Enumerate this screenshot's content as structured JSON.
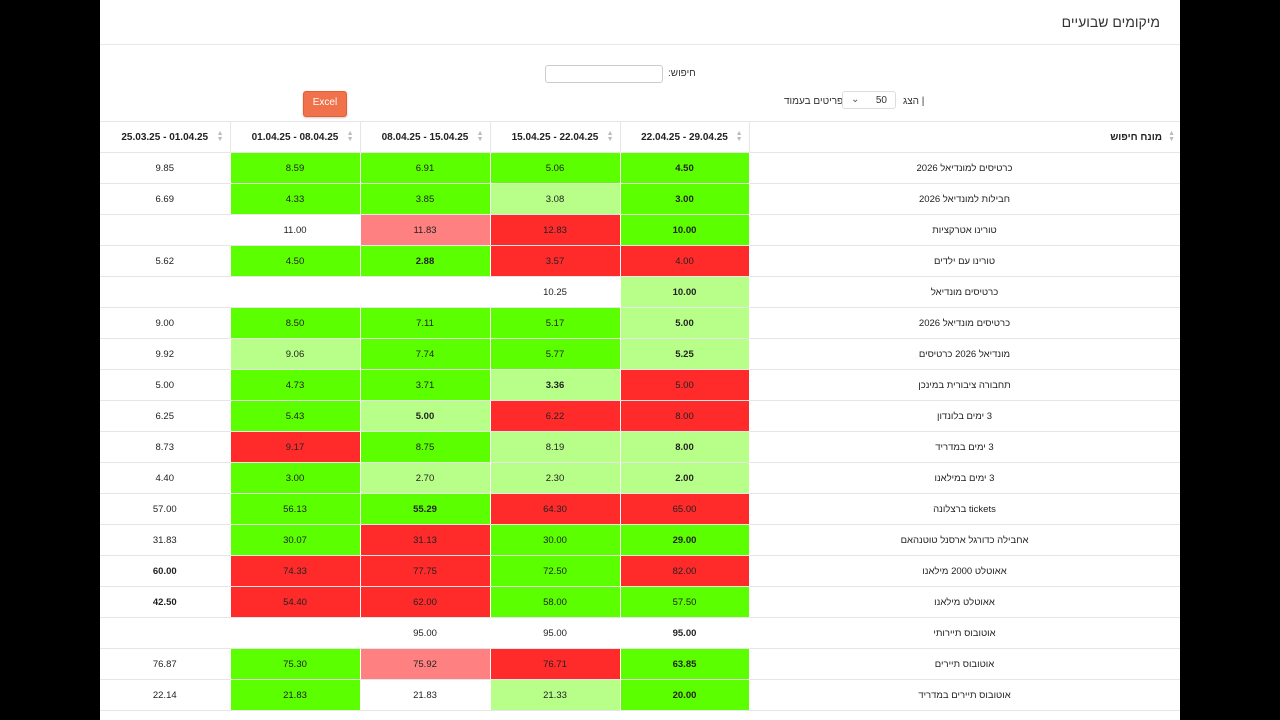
{
  "page": {
    "title": "מיקומים שבועיים"
  },
  "search": {
    "label": "חיפוש:",
    "value": ""
  },
  "excel": {
    "label": "Excel"
  },
  "pager": {
    "prefix": "| הצג",
    "value": "50",
    "suffix": "פריטים בעמוד"
  },
  "columns": {
    "query": "מונח חיפוש",
    "dates": [
      "22.04.25 - 29.04.25",
      "15.04.25 - 22.04.25",
      "08.04.25 - 15.04.25",
      "01.04.25 - 08.04.25",
      "25.03.25 - 01.04.25"
    ]
  },
  "colors": {
    "green": "#5cff00",
    "light_green": "#b7ff88",
    "red": "#ff2b2b",
    "light_red": "#ff8080"
  },
  "rows": [
    {
      "query": "כרטיסים למונדיאל 2026",
      "cells": [
        {
          "v": "4.50",
          "c": "g",
          "b": true
        },
        {
          "v": "5.06",
          "c": "g"
        },
        {
          "v": "6.91",
          "c": "g"
        },
        {
          "v": "8.59",
          "c": "g"
        },
        {
          "v": "9.85",
          "c": ""
        }
      ]
    },
    {
      "query": "חבילות למונדיאל 2026",
      "cells": [
        {
          "v": "3.00",
          "c": "g",
          "b": true
        },
        {
          "v": "3.08",
          "c": "lg"
        },
        {
          "v": "3.85",
          "c": "g"
        },
        {
          "v": "4.33",
          "c": "g"
        },
        {
          "v": "6.69",
          "c": ""
        }
      ]
    },
    {
      "query": "טורינו אטרקציות",
      "cells": [
        {
          "v": "10.00",
          "c": "g",
          "b": true
        },
        {
          "v": "12.83",
          "c": "r"
        },
        {
          "v": "11.83",
          "c": "lr"
        },
        {
          "v": "11.00",
          "c": ""
        },
        {
          "v": "",
          "c": ""
        }
      ]
    },
    {
      "query": "טורינו עם ילדים",
      "cells": [
        {
          "v": "4.00",
          "c": "r"
        },
        {
          "v": "3.57",
          "c": "r"
        },
        {
          "v": "2.88",
          "c": "g",
          "b": true
        },
        {
          "v": "4.50",
          "c": "g"
        },
        {
          "v": "5.62",
          "c": ""
        }
      ]
    },
    {
      "query": "כרטיסים מונדיאל",
      "cells": [
        {
          "v": "10.00",
          "c": "lg",
          "b": true
        },
        {
          "v": "10.25",
          "c": ""
        },
        {
          "v": "",
          "c": ""
        },
        {
          "v": "",
          "c": ""
        },
        {
          "v": "",
          "c": ""
        }
      ]
    },
    {
      "query": "כרטיסים מונדיאל 2026",
      "cells": [
        {
          "v": "5.00",
          "c": "lg",
          "b": true
        },
        {
          "v": "5.17",
          "c": "g"
        },
        {
          "v": "7.11",
          "c": "g"
        },
        {
          "v": "8.50",
          "c": "g"
        },
        {
          "v": "9.00",
          "c": ""
        }
      ]
    },
    {
      "query": "מונדיאל 2026 כרטיסים",
      "cells": [
        {
          "v": "5.25",
          "c": "lg",
          "b": true
        },
        {
          "v": "5.77",
          "c": "g"
        },
        {
          "v": "7.74",
          "c": "g"
        },
        {
          "v": "9.06",
          "c": "lg"
        },
        {
          "v": "9.92",
          "c": ""
        }
      ]
    },
    {
      "query": "תחבורה ציבורית במינכן",
      "cells": [
        {
          "v": "5.00",
          "c": "r"
        },
        {
          "v": "3.36",
          "c": "lg",
          "b": true
        },
        {
          "v": "3.71",
          "c": "g"
        },
        {
          "v": "4.73",
          "c": "g"
        },
        {
          "v": "5.00",
          "c": ""
        }
      ]
    },
    {
      "query": "3 ימים בלונדון",
      "cells": [
        {
          "v": "8.00",
          "c": "r"
        },
        {
          "v": "6.22",
          "c": "r"
        },
        {
          "v": "5.00",
          "c": "lg",
          "b": true
        },
        {
          "v": "5.43",
          "c": "g"
        },
        {
          "v": "6.25",
          "c": ""
        }
      ]
    },
    {
      "query": "3 ימים במדריד",
      "cells": [
        {
          "v": "8.00",
          "c": "lg",
          "b": true
        },
        {
          "v": "8.19",
          "c": "lg"
        },
        {
          "v": "8.75",
          "c": "g"
        },
        {
          "v": "9.17",
          "c": "r"
        },
        {
          "v": "8.73",
          "c": ""
        }
      ]
    },
    {
      "query": "3 ימים במילאנו",
      "cells": [
        {
          "v": "2.00",
          "c": "lg",
          "b": true
        },
        {
          "v": "2.30",
          "c": "lg"
        },
        {
          "v": "2.70",
          "c": "lg"
        },
        {
          "v": "3.00",
          "c": "g"
        },
        {
          "v": "4.40",
          "c": ""
        }
      ]
    },
    {
      "query": "tickets ברצלונה",
      "cells": [
        {
          "v": "65.00",
          "c": "r"
        },
        {
          "v": "64.30",
          "c": "r"
        },
        {
          "v": "55.29",
          "c": "g",
          "b": true
        },
        {
          "v": "56.13",
          "c": "g"
        },
        {
          "v": "57.00",
          "c": ""
        }
      ]
    },
    {
      "query": "אחבילה כדורגל ארסנל טוטנהאם",
      "cells": [
        {
          "v": "29.00",
          "c": "g",
          "b": true
        },
        {
          "v": "30.00",
          "c": "g"
        },
        {
          "v": "31.13",
          "c": "r"
        },
        {
          "v": "30.07",
          "c": "g"
        },
        {
          "v": "31.83",
          "c": ""
        }
      ]
    },
    {
      "query": "אאוטלט 2000 מילאנו",
      "cells": [
        {
          "v": "82.00",
          "c": "r"
        },
        {
          "v": "72.50",
          "c": "g"
        },
        {
          "v": "77.75",
          "c": "r"
        },
        {
          "v": "74.33",
          "c": "r"
        },
        {
          "v": "60.00",
          "c": "",
          "b": true
        }
      ]
    },
    {
      "query": "אאוטלט מילאנו",
      "cells": [
        {
          "v": "57.50",
          "c": "g"
        },
        {
          "v": "58.00",
          "c": "g"
        },
        {
          "v": "62.00",
          "c": "r"
        },
        {
          "v": "54.40",
          "c": "r"
        },
        {
          "v": "42.50",
          "c": "",
          "b": true
        }
      ]
    },
    {
      "query": "אוטובוס תיירותי",
      "cells": [
        {
          "v": "95.00",
          "c": "",
          "b": true
        },
        {
          "v": "95.00",
          "c": ""
        },
        {
          "v": "95.00",
          "c": ""
        },
        {
          "v": "",
          "c": ""
        },
        {
          "v": "",
          "c": ""
        }
      ]
    },
    {
      "query": "אוטובוס תיירים",
      "cells": [
        {
          "v": "63.85",
          "c": "g",
          "b": true
        },
        {
          "v": "76.71",
          "c": "r"
        },
        {
          "v": "75.92",
          "c": "lr"
        },
        {
          "v": "75.30",
          "c": "g"
        },
        {
          "v": "76.87",
          "c": ""
        }
      ]
    },
    {
      "query": "אוטובוס תיירים במדריד",
      "cells": [
        {
          "v": "20.00",
          "c": "g",
          "b": true
        },
        {
          "v": "21.33",
          "c": "lg"
        },
        {
          "v": "21.83",
          "c": ""
        },
        {
          "v": "21.83",
          "c": "g"
        },
        {
          "v": "22.14",
          "c": ""
        }
      ]
    }
  ]
}
